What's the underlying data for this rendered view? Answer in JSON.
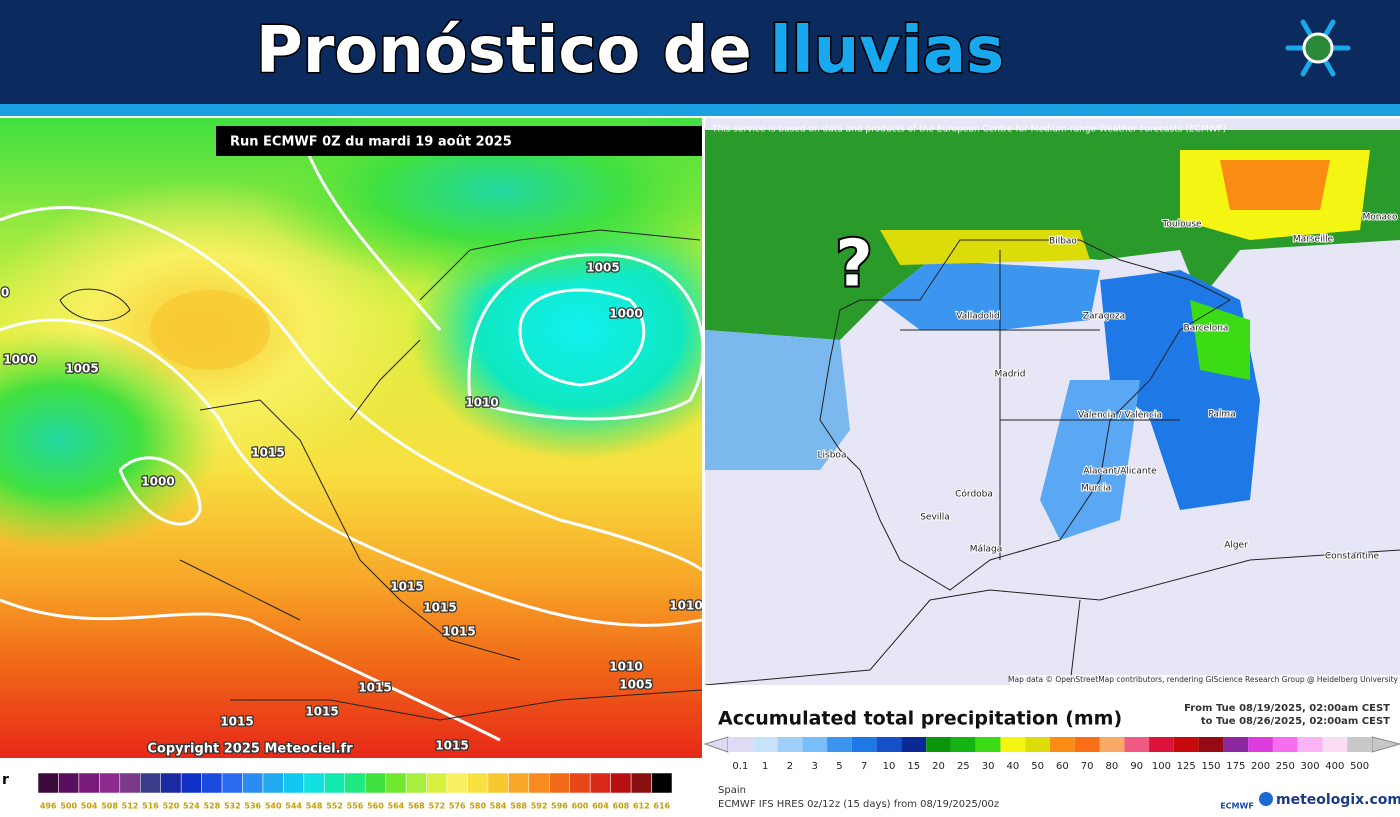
{
  "header": {
    "title_part1": "Pronóstico de",
    "title_part2": "lluvias"
  },
  "left_map": {
    "run_label": "Run ECMWF 0Z du mardi 19 août 2025",
    "copyright": "Copyright 2025 Meteociel.fr",
    "unit_fragment": "r",
    "pressure_labels": [
      "0",
      "1005",
      "1000",
      "1000",
      "1005",
      "1010",
      "1015",
      "1000",
      "1015",
      "1015",
      "1015",
      "1010",
      "1010",
      "1005",
      "1015",
      "1015",
      "1015",
      "1015"
    ],
    "colorbar": {
      "ticks": [
        496,
        500,
        504,
        508,
        512,
        516,
        520,
        524,
        528,
        532,
        536,
        540,
        544,
        548,
        552,
        556,
        560,
        564,
        568,
        572,
        576,
        580,
        584,
        588,
        592,
        596,
        600,
        604,
        608,
        612,
        616
      ],
      "colors": [
        "#3b0a3a",
        "#5a0f5e",
        "#7a1a7a",
        "#8d2a8d",
        "#7a3a8a",
        "#3b3b8a",
        "#1a2aa0",
        "#1030c8",
        "#1a4ae0",
        "#2a6af0",
        "#2a8cf0",
        "#22aaf0",
        "#10c8f0",
        "#10e0e0",
        "#10e8b0",
        "#20e880",
        "#40e040",
        "#70e830",
        "#a8f040",
        "#d8f040",
        "#f8f060",
        "#f8e040",
        "#f8c830",
        "#f8a828",
        "#f88a20",
        "#f06a18",
        "#e84818",
        "#d82818",
        "#b81010",
        "#881010",
        "#000000"
      ]
    }
  },
  "right_map": {
    "attribution": "This service is based on data and products of the European Centre for Medium-range Weather Forecasts (ECMWF)",
    "map_credit": "Map data © OpenStreetMap contributors, rendering GIScience Research Group @ Heidelberg University",
    "question_mark": "?",
    "cities": [
      "Bilbao",
      "Toulouse",
      "Marseille",
      "Monaco",
      "Valladolid",
      "Zaragoza",
      "Barcelona",
      "Madrid",
      "Valencia / València",
      "Palma",
      "Lisboa",
      "Alacant/Alicante",
      "Murcia",
      "Córdoba",
      "Sevilla",
      "Málaga",
      "Alger",
      "Constantine"
    ],
    "title": "Accumulated total precipitation (mm)",
    "from": "From Tue 08/19/2025, 02:00am CEST",
    "to": "to Tue 08/26/2025, 02:00am CEST",
    "region": "Spain",
    "model": "ECMWF IFS HRES 0z/12z (15 days) from 08/19/2025/00z",
    "logo_ecmwf": "ECMWF",
    "brand": "meteologix.com",
    "colorbar": {
      "ticks": [
        0.1,
        1,
        2,
        3,
        5,
        7,
        10,
        15,
        20,
        25,
        30,
        40,
        50,
        60,
        70,
        80,
        90,
        100,
        125,
        150,
        175,
        200,
        250,
        300,
        400,
        500
      ],
      "colors": [
        "#dcdcf5",
        "#c8e4fa",
        "#a0d0fa",
        "#78bef8",
        "#3c96f0",
        "#1e78e6",
        "#1450c8",
        "#0a2896",
        "#0a960a",
        "#14b414",
        "#3cdc14",
        "#f5f514",
        "#dcdc0a",
        "#fa8c14",
        "#fa6e14",
        "#faaa64",
        "#f05a82",
        "#dc143c",
        "#c80a0a",
        "#960a14",
        "#8c28a0",
        "#dc3cdc",
        "#f56ef0",
        "#fab4f5",
        "#fadcf5",
        "#c8c8c8"
      ]
    }
  }
}
